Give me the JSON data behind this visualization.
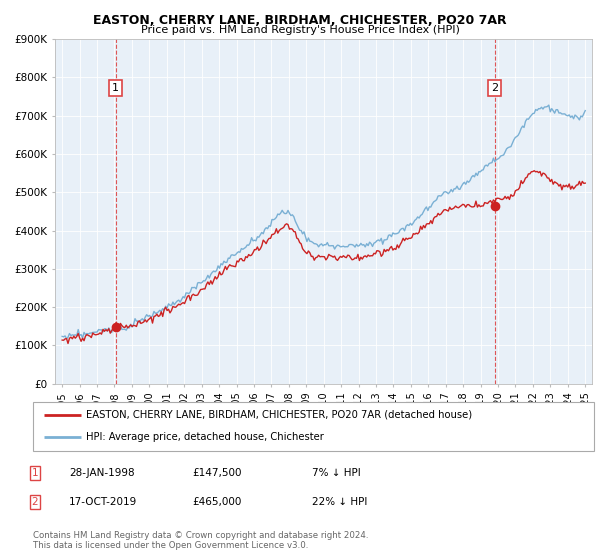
{
  "title1": "EASTON, CHERRY LANE, BIRDHAM, CHICHESTER, PO20 7AR",
  "title2": "Price paid vs. HM Land Registry's House Price Index (HPI)",
  "legend_label1": "EASTON, CHERRY LANE, BIRDHAM, CHICHESTER, PO20 7AR (detached house)",
  "legend_label2": "HPI: Average price, detached house, Chichester",
  "annotation1_label": "1",
  "annotation1_date": "28-JAN-1998",
  "annotation1_price": "£147,500",
  "annotation1_hpi": "7% ↓ HPI",
  "annotation2_label": "2",
  "annotation2_date": "17-OCT-2019",
  "annotation2_price": "£465,000",
  "annotation2_hpi": "22% ↓ HPI",
  "footer": "Contains HM Land Registry data © Crown copyright and database right 2024.\nThis data is licensed under the Open Government Licence v3.0.",
  "sale1_year": 1998.07,
  "sale1_price": 147500,
  "sale2_year": 2019.8,
  "sale2_price": 465000,
  "hpi_color": "#7ab0d4",
  "price_color": "#cc2222",
  "vline_color": "#dd4444",
  "bg_color": "#e8f0f8",
  "ylim_max": 900000,
  "yticks": [
    0,
    100000,
    200000,
    300000,
    400000,
    500000,
    600000,
    700000,
    800000,
    900000
  ],
  "hpi_trend_x": [
    1995,
    1996,
    1997,
    1998,
    1999,
    2000,
    2001,
    2002,
    2003,
    2004,
    2005,
    2006,
    2007,
    2008,
    2009,
    2010,
    2011,
    2012,
    2013,
    2014,
    2015,
    2016,
    2017,
    2018,
    2019,
    2020,
    2021,
    2022,
    2023,
    2024,
    2025
  ],
  "hpi_trend_y": [
    120000,
    128000,
    135000,
    143000,
    157000,
    178000,
    200000,
    228000,
    265000,
    305000,
    340000,
    375000,
    420000,
    445000,
    380000,
    360000,
    360000,
    360000,
    370000,
    390000,
    420000,
    460000,
    500000,
    520000,
    560000,
    590000,
    640000,
    710000,
    720000,
    700000,
    710000
  ],
  "price_trend_x": [
    1995,
    1996,
    1997,
    1998,
    1999,
    2000,
    2001,
    2002,
    2003,
    2004,
    2005,
    2006,
    2007,
    2008,
    2009,
    2010,
    2011,
    2012,
    2013,
    2014,
    2015,
    2016,
    2017,
    2018,
    2019,
    2020,
    2021,
    2022,
    2023,
    2024,
    2025
  ],
  "price_trend_y": [
    113000,
    120000,
    128000,
    147500,
    152000,
    170000,
    190000,
    215000,
    248000,
    285000,
    315000,
    345000,
    385000,
    410000,
    345000,
    330000,
    330000,
    330000,
    338000,
    355000,
    380000,
    415000,
    450000,
    465000,
    465000,
    480000,
    500000,
    550000,
    530000,
    510000,
    525000
  ]
}
